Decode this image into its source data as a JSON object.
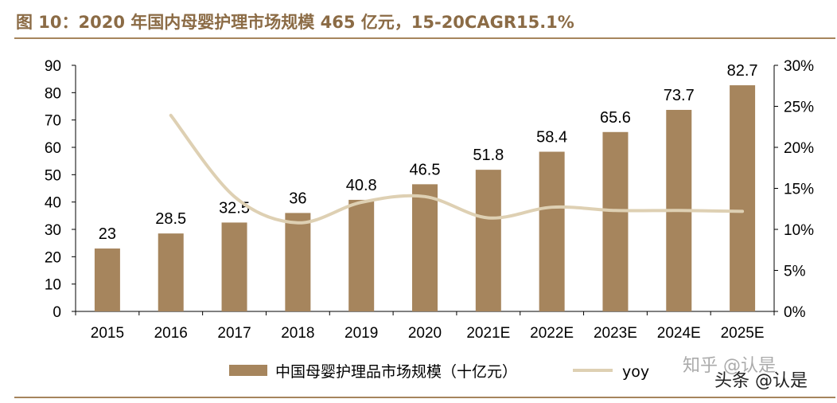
{
  "header": {
    "title": "图 10：2020 年国内母婴护理市场规模 465 亿元，15-20CAGR15.1%"
  },
  "colors": {
    "bar": "#a6855d",
    "line": "#ded0b3",
    "title": "#8b6b45"
  },
  "chart_data": {
    "type": "bar",
    "categories": [
      "2015",
      "2016",
      "2017",
      "2018",
      "2019",
      "2020",
      "2021E",
      "2022E",
      "2023E",
      "2024E",
      "2025E"
    ],
    "series": [
      {
        "name": "中国母婴护理品市场规模（十亿元）",
        "type": "bar",
        "axis": "left",
        "values": [
          23,
          28.5,
          32.5,
          36,
          40.8,
          46.5,
          51.8,
          58.4,
          65.6,
          73.7,
          82.7
        ]
      },
      {
        "name": "yoy",
        "type": "line",
        "axis": "right",
        "values": [
          null,
          0.239,
          0.14,
          0.108,
          0.133,
          0.14,
          0.114,
          0.127,
          0.123,
          0.123,
          0.122
        ]
      }
    ],
    "ylim": [
      0,
      90
    ],
    "yticks": [
      0,
      10,
      20,
      30,
      40,
      50,
      60,
      70,
      80,
      90
    ],
    "y2lim": [
      0,
      0.3
    ],
    "y2ticks": [
      "0%",
      "5%",
      "10%",
      "15%",
      "20%",
      "25%",
      "30%"
    ],
    "data_labels": [
      "23",
      "28.5",
      "32.5",
      "36",
      "40.8",
      "46.5",
      "51.8",
      "58.4",
      "65.6",
      "73.7",
      "82.7"
    ],
    "legend_position": "bottom",
    "grid": false
  },
  "watermark": {
    "line1": "知乎 @认是",
    "line2": "头条 @认是"
  }
}
